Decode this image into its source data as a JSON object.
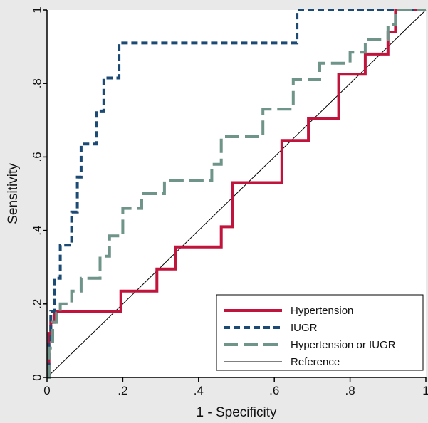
{
  "chart_data": {
    "type": "line",
    "xlabel": "1 - Specificity",
    "ylabel": "Sensitivity",
    "xlim": [
      0,
      1
    ],
    "ylim": [
      0,
      1
    ],
    "xticks": [
      {
        "value": 0,
        "label": "0"
      },
      {
        "value": 0.2,
        "label": ".2"
      },
      {
        "value": 0.4,
        "label": ".4"
      },
      {
        "value": 0.6,
        "label": ".6"
      },
      {
        "value": 0.8,
        "label": ".8"
      },
      {
        "value": 1,
        "label": "1"
      }
    ],
    "yticks": [
      {
        "value": 0,
        "label": "0"
      },
      {
        "value": 0.2,
        "label": ".2"
      },
      {
        "value": 0.4,
        "label": ".4"
      },
      {
        "value": 0.6,
        "label": ".6"
      },
      {
        "value": 0.8,
        "label": ".8"
      },
      {
        "value": 1,
        "label": "1"
      }
    ],
    "grid": false,
    "legend_position": "bottom-right",
    "series": [
      {
        "name": "Hypertension",
        "color": "#c0143c",
        "style": "solid-thick",
        "x": [
          0,
          0.005,
          0.005,
          0.01,
          0.01,
          0.02,
          0.02,
          0.195,
          0.195,
          0.29,
          0.29,
          0.34,
          0.34,
          0.46,
          0.46,
          0.49,
          0.49,
          0.62,
          0.62,
          0.69,
          0.69,
          0.77,
          0.77,
          0.84,
          0.84,
          0.9,
          0.9,
          0.92,
          0.92,
          1
        ],
        "y": [
          0,
          0,
          0.12,
          0.12,
          0.15,
          0.15,
          0.18,
          0.18,
          0.235,
          0.235,
          0.295,
          0.295,
          0.355,
          0.355,
          0.41,
          0.41,
          0.53,
          0.53,
          0.645,
          0.645,
          0.705,
          0.705,
          0.825,
          0.825,
          0.88,
          0.88,
          0.94,
          0.94,
          1,
          1
        ]
      },
      {
        "name": "IUGR",
        "color": "#1b4a75",
        "style": "short-dash",
        "x": [
          0,
          0.005,
          0.005,
          0.01,
          0.01,
          0.02,
          0.02,
          0.035,
          0.035,
          0.065,
          0.065,
          0.08,
          0.08,
          0.09,
          0.09,
          0.13,
          0.13,
          0.15,
          0.15,
          0.19,
          0.19,
          0.2,
          0.2,
          0.66,
          0.66,
          1
        ],
        "y": [
          0,
          0,
          0.09,
          0.09,
          0.18,
          0.18,
          0.27,
          0.27,
          0.36,
          0.36,
          0.45,
          0.45,
          0.545,
          0.545,
          0.635,
          0.635,
          0.725,
          0.725,
          0.815,
          0.815,
          0.91,
          0.91,
          0.91,
          0.91,
          1,
          1
        ]
      },
      {
        "name": "Hypertension or IUGR",
        "color": "#6f9489",
        "style": "long-dash",
        "x": [
          0,
          0.005,
          0.005,
          0.015,
          0.015,
          0.025,
          0.025,
          0.035,
          0.035,
          0.065,
          0.065,
          0.09,
          0.09,
          0.14,
          0.14,
          0.165,
          0.165,
          0.2,
          0.2,
          0.25,
          0.25,
          0.31,
          0.31,
          0.435,
          0.435,
          0.46,
          0.46,
          0.57,
          0.57,
          0.65,
          0.65,
          0.72,
          0.72,
          0.8,
          0.8,
          0.84,
          0.84,
          0.9,
          0.9,
          0.92,
          0.92,
          1
        ],
        "y": [
          0,
          0,
          0.08,
          0.08,
          0.15,
          0.15,
          0.175,
          0.175,
          0.2,
          0.2,
          0.235,
          0.235,
          0.27,
          0.27,
          0.33,
          0.33,
          0.385,
          0.385,
          0.46,
          0.46,
          0.5,
          0.5,
          0.535,
          0.535,
          0.58,
          0.58,
          0.655,
          0.655,
          0.73,
          0.73,
          0.81,
          0.81,
          0.855,
          0.855,
          0.885,
          0.885,
          0.92,
          0.92,
          0.96,
          0.96,
          1,
          1
        ]
      },
      {
        "name": "Reference",
        "color": "#000000",
        "style": "thin-solid",
        "x": [
          0,
          1
        ],
        "y": [
          0,
          1
        ]
      }
    ]
  }
}
